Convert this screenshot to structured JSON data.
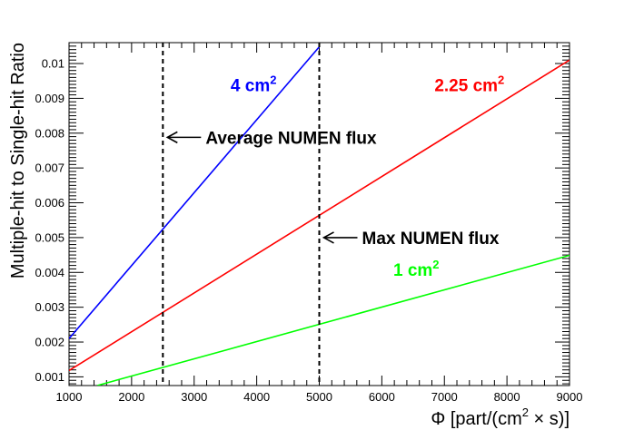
{
  "chart_data": {
    "type": "line",
    "xlabel": {
      "prefix": "Φ [part/(cm",
      "sup": "2",
      "suffix": " × s)]"
    },
    "ylabel": "Multiple-hit to Single-hit Ratio",
    "xlim": [
      1000,
      9000
    ],
    "ylim": [
      0.00075,
      0.0106
    ],
    "x_ticks": [
      1000,
      2000,
      3000,
      4000,
      5000,
      6000,
      7000,
      8000,
      9000
    ],
    "x_tick_labels": [
      "1000",
      "2000",
      "3000",
      "4000",
      "5000",
      "6000",
      "7000",
      "8000",
      "9000"
    ],
    "y_ticks": [
      0.001,
      0.002,
      0.003,
      0.004,
      0.005,
      0.006,
      0.007,
      0.008,
      0.009,
      0.01
    ],
    "y_tick_labels": [
      "0.001",
      "0.002",
      "0.003",
      "0.004",
      "0.005",
      "0.006",
      "0.007",
      "0.008",
      "0.009",
      "0.01"
    ],
    "grid": false,
    "series": [
      {
        "name": "4 cm²",
        "label_base": "4 cm",
        "label_sup": "2",
        "color": "#0000ff",
        "x": [
          1000,
          5000
        ],
        "y": [
          0.0021,
          0.01048
        ]
      },
      {
        "name": "2.25 cm²",
        "label_base": "2.25 cm",
        "label_sup": "2",
        "color": "#ff0000",
        "x": [
          1000,
          9000
        ],
        "y": [
          0.00118,
          0.0101
        ]
      },
      {
        "name": "1 cm²",
        "label_base": "1 cm",
        "label_sup": "2",
        "color": "#00ff00",
        "x": [
          1450,
          9000
        ],
        "y": [
          0.00075,
          0.00449
        ]
      }
    ],
    "vlines": [
      {
        "x": 2500,
        "label": "Average NUMEN flux",
        "arrow_y": 0.00788
      },
      {
        "x": 5000,
        "label": "Max NUMEN flux",
        "arrow_y": 0.005
      }
    ],
    "series_label_positions": [
      {
        "x": 3950,
        "y": 0.0092
      },
      {
        "x": 7400,
        "y": 0.0092
      },
      {
        "x": 6550,
        "y": 0.0039
      }
    ]
  }
}
